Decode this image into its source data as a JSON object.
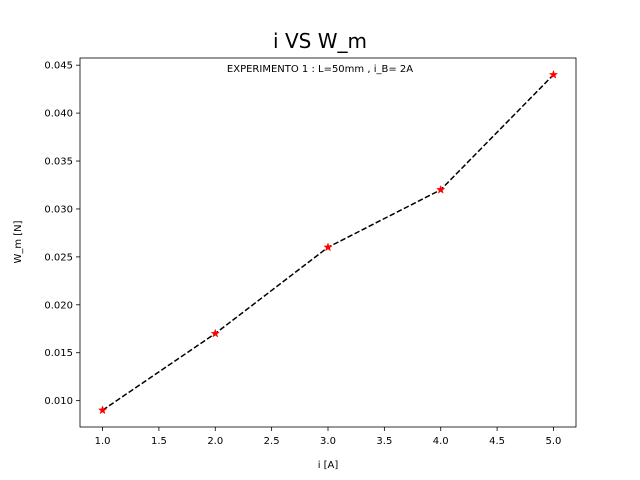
{
  "chart_data": {
    "type": "line",
    "title": "i VS W_m",
    "annotation": "EXPERIMENTO 1 : L=50mm , i_B= 2A",
    "xlabel": "i [A]",
    "ylabel": "W_m [N]",
    "xlim": [
      0.8,
      5.2
    ],
    "ylim": [
      0.00725,
      0.04575
    ],
    "xticks": [
      "1.0",
      "1.5",
      "2.0",
      "2.5",
      "3.0",
      "3.5",
      "4.0",
      "4.5",
      "5.0"
    ],
    "yticks": [
      "0.010",
      "0.015",
      "0.020",
      "0.025",
      "0.030",
      "0.035",
      "0.040",
      "0.045"
    ],
    "grid": false,
    "series": [
      {
        "x": [
          1.0,
          2.0,
          3.0,
          4.0,
          5.0
        ],
        "y": [
          0.009,
          0.017,
          0.026,
          0.032,
          0.044
        ],
        "line_color": "#000000",
        "line_style": "dashed",
        "marker": "star",
        "marker_color": "#ff0000"
      }
    ]
  }
}
